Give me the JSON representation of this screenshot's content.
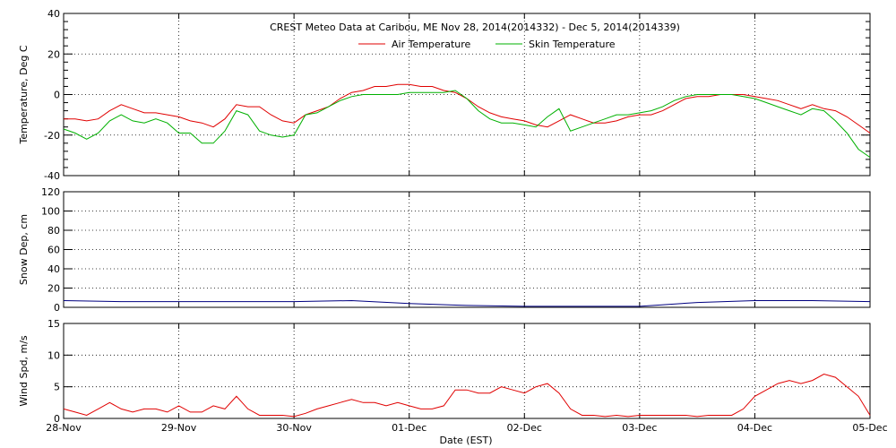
{
  "title": "CREST Meteo Data at Caribou, ME   Nov 28, 2014(2014332) - Dec  5, 2014(2014339)",
  "x_axis": {
    "label": "Date (EST)",
    "ticks": [
      "28-Nov",
      "29-Nov",
      "30-Nov",
      "01-Dec",
      "02-Dec",
      "03-Dec",
      "04-Dec",
      "05-Dec"
    ]
  },
  "colors": {
    "air": "#e00000",
    "skin": "#00b000",
    "snow": "#000080",
    "wind": "#e00000"
  },
  "chart_data": [
    {
      "type": "line",
      "ylabel": "Temperature, Deg C",
      "ylim": [
        -40,
        40
      ],
      "yticks": [
        -40,
        -20,
        0,
        20,
        40
      ],
      "grid": true,
      "legend_position": "top",
      "x_days": [
        0,
        0.1,
        0.2,
        0.3,
        0.4,
        0.5,
        0.6,
        0.7,
        0.8,
        0.9,
        1.0,
        1.1,
        1.2,
        1.3,
        1.4,
        1.5,
        1.6,
        1.7,
        1.8,
        1.9,
        2.0,
        2.1,
        2.2,
        2.3,
        2.4,
        2.5,
        2.6,
        2.7,
        2.8,
        2.9,
        3.0,
        3.1,
        3.2,
        3.3,
        3.4,
        3.5,
        3.6,
        3.7,
        3.8,
        3.9,
        4.0,
        4.1,
        4.2,
        4.3,
        4.4,
        4.5,
        4.6,
        4.7,
        4.8,
        4.9,
        5.0,
        5.1,
        5.2,
        5.3,
        5.4,
        5.5,
        5.6,
        5.7,
        5.8,
        5.9,
        6.0,
        6.1,
        6.2,
        6.3,
        6.4,
        6.5,
        6.6,
        6.7,
        6.8,
        6.9,
        7.0
      ],
      "series": [
        {
          "name": "Air Temperature",
          "values": [
            -12,
            -12,
            -13,
            -12,
            -8,
            -5,
            -7,
            -9,
            -9,
            -10,
            -11,
            -13,
            -14,
            -16,
            -12,
            -5,
            -6,
            -6,
            -10,
            -13,
            -14,
            -10,
            -8,
            -6,
            -2,
            1,
            2,
            4,
            4,
            5,
            5,
            4,
            4,
            2,
            1,
            -2,
            -6,
            -9,
            -11,
            -12,
            -13,
            -15,
            -16,
            -13,
            -10,
            -12,
            -14,
            -14,
            -13,
            -11,
            -10,
            -10,
            -8,
            -5,
            -2,
            -1,
            -1,
            0,
            0,
            0,
            -1,
            -2,
            -3,
            -5,
            -7,
            -5,
            -7,
            -8,
            -11,
            -15,
            -19
          ]
        },
        {
          "name": "Skin Temperature",
          "values": [
            -17,
            -19,
            -22,
            -19,
            -13,
            -10,
            -13,
            -14,
            -12,
            -14,
            -19,
            -19,
            -24,
            -24,
            -18,
            -8,
            -10,
            -18,
            -20,
            -21,
            -20,
            -10,
            -9,
            -6,
            -3,
            -1,
            0,
            0,
            0,
            0,
            1,
            1,
            1,
            1,
            2,
            -2,
            -8,
            -12,
            -14,
            -14,
            -15,
            -16,
            -11,
            -7,
            -18,
            -16,
            -14,
            -12,
            -10,
            -10,
            -9,
            -8,
            -6,
            -3,
            -1,
            0,
            0,
            0,
            0,
            -1,
            -2,
            -4,
            -6,
            -8,
            -10,
            -7,
            -8,
            -13,
            -19,
            -27,
            -31
          ]
        }
      ]
    },
    {
      "type": "line",
      "ylabel": "Snow Dep, cm",
      "ylim": [
        0,
        120
      ],
      "yticks": [
        0,
        20,
        40,
        60,
        80,
        100,
        120
      ],
      "grid": true,
      "x_days": [
        0,
        0.5,
        1.0,
        1.5,
        2.0,
        2.5,
        3.0,
        3.5,
        4.0,
        4.5,
        5.0,
        5.5,
        6.0,
        6.5,
        7.0
      ],
      "series": [
        {
          "name": "",
          "values": [
            7,
            6,
            6,
            6,
            6,
            7,
            4,
            2,
            1,
            1,
            1,
            5,
            7,
            7,
            6
          ]
        }
      ]
    },
    {
      "type": "line",
      "ylabel": "Wind Spd, m/s",
      "ylim": [
        0,
        15
      ],
      "yticks": [
        0,
        5,
        10,
        15
      ],
      "grid": true,
      "x_days": [
        0,
        0.1,
        0.2,
        0.3,
        0.4,
        0.5,
        0.6,
        0.7,
        0.8,
        0.9,
        1.0,
        1.1,
        1.2,
        1.3,
        1.4,
        1.5,
        1.6,
        1.7,
        1.8,
        1.9,
        2.0,
        2.1,
        2.2,
        2.3,
        2.4,
        2.5,
        2.6,
        2.7,
        2.8,
        2.9,
        3.0,
        3.1,
        3.2,
        3.3,
        3.4,
        3.5,
        3.6,
        3.7,
        3.8,
        3.9,
        4.0,
        4.1,
        4.2,
        4.3,
        4.4,
        4.5,
        4.6,
        4.7,
        4.8,
        4.9,
        5.0,
        5.1,
        5.2,
        5.3,
        5.4,
        5.5,
        5.6,
        5.7,
        5.8,
        5.9,
        6.0,
        6.1,
        6.2,
        6.3,
        6.4,
        6.5,
        6.6,
        6.7,
        6.8,
        6.9,
        7.0
      ],
      "series": [
        {
          "name": "",
          "values": [
            1.5,
            1.0,
            0.5,
            1.5,
            2.5,
            1.5,
            1.0,
            1.5,
            1.5,
            1.0,
            2.0,
            1.0,
            1.0,
            2.0,
            1.5,
            3.5,
            1.5,
            0.5,
            0.5,
            0.5,
            0.3,
            0.8,
            1.5,
            2.0,
            2.5,
            3.0,
            2.5,
            2.5,
            2.0,
            2.5,
            2.0,
            1.5,
            1.5,
            2.0,
            4.5,
            4.5,
            4.0,
            4.0,
            5.0,
            4.5,
            4.0,
            5.0,
            5.5,
            4.0,
            1.5,
            0.5,
            0.5,
            0.3,
            0.5,
            0.3,
            0.5,
            0.5,
            0.5,
            0.5,
            0.5,
            0.3,
            0.5,
            0.5,
            0.5,
            1.5,
            3.5,
            4.5,
            5.5,
            6.0,
            5.5,
            6.0,
            7.0,
            6.5,
            5.0,
            3.5,
            0.5
          ]
        }
      ]
    }
  ]
}
